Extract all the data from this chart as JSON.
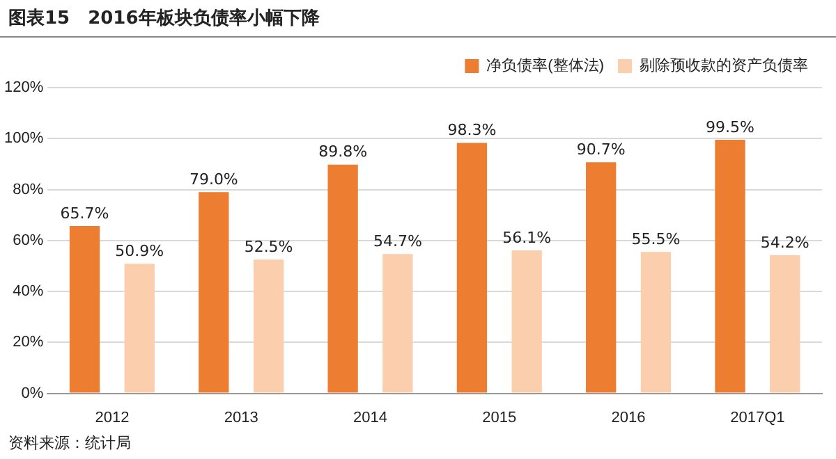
{
  "chart_data": {
    "type": "bar",
    "title": "图表15　2016年板块负债率小幅下降",
    "categories": [
      "2012",
      "2013",
      "2014",
      "2015",
      "2016",
      "2017Q1"
    ],
    "series": [
      {
        "name": "净负债率(整体法)",
        "color": "#ed7d31",
        "values": [
          65.7,
          79.0,
          89.8,
          98.3,
          90.7,
          99.5
        ],
        "value_labels": [
          "65.7%",
          "79.0%",
          "89.8%",
          "98.3%",
          "90.7%",
          "99.5%"
        ]
      },
      {
        "name": "剔除预收款的资产负债率",
        "color": "#fbcfad",
        "values": [
          50.9,
          52.5,
          54.7,
          56.1,
          55.5,
          54.2
        ],
        "value_labels": [
          "50.9%",
          "52.5%",
          "54.7%",
          "56.1%",
          "55.5%",
          "54.2%"
        ]
      }
    ],
    "ylim": [
      0,
      120
    ],
    "yticks": [
      {
        "value": 0,
        "label": "0%"
      },
      {
        "value": 20,
        "label": "20%"
      },
      {
        "value": 40,
        "label": "40%"
      },
      {
        "value": 60,
        "label": "60%"
      },
      {
        "value": 80,
        "label": "80%"
      },
      {
        "value": 100,
        "label": "100%"
      },
      {
        "value": 120,
        "label": "120%"
      }
    ],
    "grid": "y",
    "legend": "top right",
    "annotations": [
      "资料来源：统计局"
    ]
  }
}
